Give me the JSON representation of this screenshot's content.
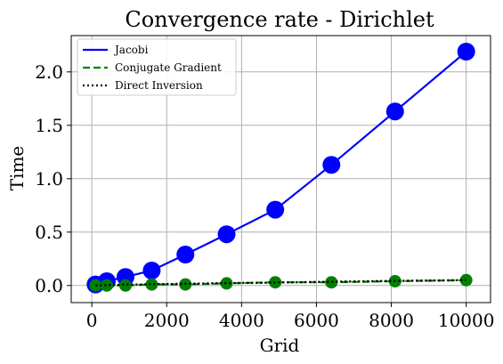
{
  "chart_data": {
    "type": "line",
    "title": "Convergence rate - Dirichlet",
    "xlabel": "Grid",
    "ylabel": "Time",
    "xlim": [
      -550,
      10650
    ],
    "ylim": [
      -0.16,
      2.34
    ],
    "xticks": [
      0,
      2000,
      4000,
      6000,
      8000,
      10000
    ],
    "yticks": [
      0.0,
      0.5,
      1.0,
      1.5,
      2.0
    ],
    "xtick_labels": [
      "0",
      "2000",
      "4000",
      "6000",
      "8000",
      "10000"
    ],
    "ytick_labels": [
      "0.0",
      "0.5",
      "1.0",
      "1.5",
      "2.0"
    ],
    "grid": true,
    "legend_position": "upper-left",
    "x": [
      100,
      400,
      900,
      1600,
      2500,
      3600,
      4900,
      6400,
      8100,
      10000
    ],
    "series": [
      {
        "name": "Jacobi",
        "color": "#0000ff",
        "line_style": "solid",
        "marker_color": "#0000ff",
        "values": [
          0.01,
          0.04,
          0.08,
          0.14,
          0.29,
          0.48,
          0.71,
          1.13,
          1.63,
          2.19
        ]
      },
      {
        "name": "Conjugate Gradient",
        "color": "#008000",
        "line_style": "dashed",
        "marker_color": "#008000",
        "values": [
          0.0,
          0.0,
          0.0,
          0.01,
          0.01,
          0.02,
          0.03,
          0.03,
          0.04,
          0.05
        ]
      },
      {
        "name": "Direct Inversion",
        "color": "#000000",
        "line_style": "dotted",
        "marker_color": null,
        "values": [
          0.0,
          0.005,
          0.008,
          0.012,
          0.016,
          0.022,
          0.028,
          0.035,
          0.043,
          0.05
        ]
      }
    ]
  }
}
